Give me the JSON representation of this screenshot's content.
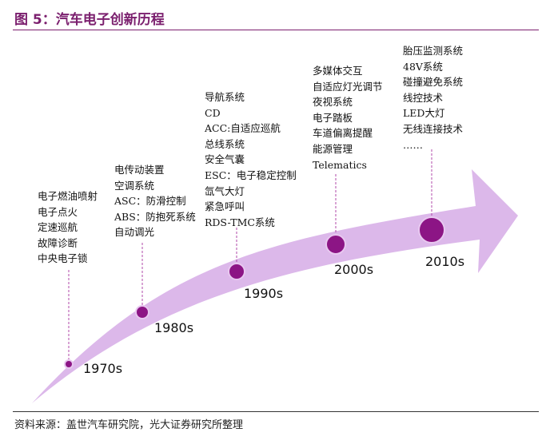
{
  "title": "图 5：汽车电子创新历程",
  "source": "资料来源：盖世汽车研究院，光大证券研究所整理",
  "colors": {
    "arrow_fill": "#dcb8ea",
    "node_fill": "#8c1585",
    "node_stroke": "#e8c8f0",
    "accent": "#7b1f6e",
    "leader_line": "#b04aa8"
  },
  "eras": [
    {
      "decade": "1970s",
      "items": [
        "电子燃油喷射",
        "电子点火",
        "定速巡航",
        "故障诊断",
        "中央电子锁"
      ]
    },
    {
      "decade": "1980s",
      "items": [
        "电传动装置",
        "空调系统",
        "ASC：防滑控制",
        "ABS：防抱死系统",
        "自动调光"
      ]
    },
    {
      "decade": "1990s",
      "items": [
        "导航系统",
        "CD",
        "ACC:自适应巡航",
        "总线系统",
        "安全气囊",
        "ESC：电子稳定控制",
        "氙气大灯",
        "紧急呼叫",
        "RDS-TMC系统"
      ]
    },
    {
      "decade": "2000s",
      "items": [
        "多媒体交互",
        "自适应灯光调节",
        "夜视系统",
        "电子踏板",
        "车道偏离提醒",
        "能源管理",
        "Telematics"
      ]
    },
    {
      "decade": "2010s",
      "items": [
        "胎压监测系统",
        "48V系统",
        "碰撞避免系统",
        "线控技术",
        "LED大灯",
        "无线连接技术",
        "……"
      ]
    }
  ]
}
